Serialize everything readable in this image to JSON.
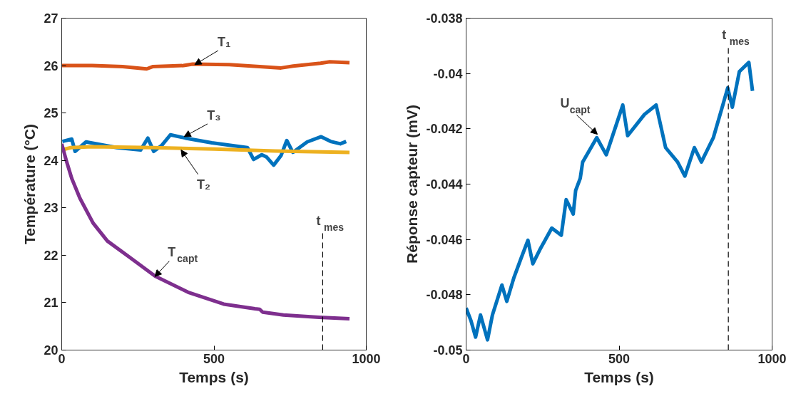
{
  "chart_data": [
    {
      "type": "line",
      "xlabel": "Temps (s)",
      "ylabel": "Température (°C)",
      "xlim": [
        0,
        1000
      ],
      "ylim": [
        20,
        27
      ],
      "xticks": [
        0,
        500,
        1000
      ],
      "yticks": [
        20,
        21,
        22,
        23,
        24,
        25,
        26,
        27
      ],
      "grid": false,
      "marker": "none",
      "line_style": "solid",
      "series": [
        {
          "color": "#d95319",
          "x": [
            0,
            100,
            200,
            279,
            300,
            400,
            430,
            550,
            650,
            720,
            760,
            850,
            880,
            945
          ],
          "values": [
            26.0,
            26.0,
            25.98,
            25.93,
            25.98,
            26.0,
            26.03,
            26.02,
            25.98,
            25.95,
            25.99,
            26.05,
            26.08,
            26.06
          ]
        },
        {
          "color": "#0072bd",
          "x": [
            2,
            33,
            44,
            80,
            181,
            259,
            283,
            302,
            329,
            357,
            407,
            493,
            610,
            630,
            657,
            673,
            696,
            720,
            739,
            759,
            806,
            852,
            883,
            915,
            934
          ],
          "values": [
            24.4,
            24.45,
            24.19,
            24.39,
            24.27,
            24.22,
            24.47,
            24.19,
            24.32,
            24.54,
            24.47,
            24.37,
            24.27,
            24.02,
            24.12,
            24.07,
            23.9,
            24.1,
            24.42,
            24.17,
            24.39,
            24.5,
            24.4,
            24.35,
            24.4
          ]
        },
        {
          "color": "#edb120",
          "x": [
            0,
            30,
            100,
            300,
            500,
            700,
            945
          ],
          "values": [
            24.22,
            24.27,
            24.29,
            24.27,
            24.24,
            24.2,
            24.17
          ]
        },
        {
          "color": "#7e2f8e",
          "x": [
            0,
            15,
            33,
            60,
            103,
            150,
            220,
            307,
            415,
            532,
            635,
            650,
            660,
            728,
            845,
            945
          ],
          "values": [
            24.35,
            24.0,
            23.62,
            23.2,
            22.68,
            22.3,
            21.97,
            21.56,
            21.22,
            20.97,
            20.87,
            20.86,
            20.8,
            20.74,
            20.69,
            20.66
          ]
        }
      ],
      "ref_lines": [
        {
          "axis": "x",
          "value": 857,
          "label": "t$_{mes}$",
          "color": "#000000",
          "line_style": "dashed"
        }
      ],
      "annotations": [
        {
          "text": "T₁",
          "x": 437,
          "y": 26.02
        },
        {
          "text": "T₃",
          "x": 402,
          "y": 24.5
        },
        {
          "text": "T₂",
          "x": 392,
          "y": 24.22
        },
        {
          "text": "T$_{capt}$",
          "x": 306,
          "y": 21.55
        }
      ]
    },
    {
      "type": "line",
      "xlabel": "Temps (s)",
      "ylabel": "Réponse capteur (mV)",
      "xlim": [
        0,
        1000
      ],
      "ylim": [
        -0.05,
        -0.038
      ],
      "xticks": [
        0,
        500,
        1000
      ],
      "yticks": [
        -0.05,
        -0.048,
        -0.046,
        -0.044,
        -0.042,
        -0.04,
        -0.038
      ],
      "grid": false,
      "marker": "none",
      "line_style": "solid",
      "series": [
        {
          "color": "#0072bd",
          "x": [
            0,
            16,
            31,
            47,
            70,
            86,
            117,
            133,
            156,
            179,
            202,
            218,
            241,
            280,
            311,
            327,
            350,
            358,
            373,
            381,
            427,
            458,
            489,
            512,
            528,
            583,
            621,
            652,
            691,
            715,
            746,
            769,
            808,
            839,
            855,
            870,
            893,
            924,
            936
          ],
          "values": [
            -0.04848,
            -0.04894,
            -0.04953,
            -0.04873,
            -0.04963,
            -0.04873,
            -0.04765,
            -0.04824,
            -0.04739,
            -0.0467,
            -0.04603,
            -0.04688,
            -0.04637,
            -0.04559,
            -0.04585,
            -0.04456,
            -0.04508,
            -0.04423,
            -0.04379,
            -0.0432,
            -0.04232,
            -0.04294,
            -0.04191,
            -0.04114,
            -0.04225,
            -0.04148,
            -0.04114,
            -0.04268,
            -0.0432,
            -0.04371,
            -0.04268,
            -0.0432,
            -0.04232,
            -0.04114,
            -0.04052,
            -0.04122,
            -0.03993,
            -0.0396,
            -0.04063
          ]
        }
      ],
      "ref_lines": [
        {
          "axis": "x",
          "value": 857,
          "label": "t$_{mes}$",
          "color": "#000000",
          "line_style": "dashed"
        }
      ],
      "annotations": [
        {
          "text": "U$_{capt}$",
          "x": 429,
          "y": -0.0422
        }
      ]
    }
  ]
}
